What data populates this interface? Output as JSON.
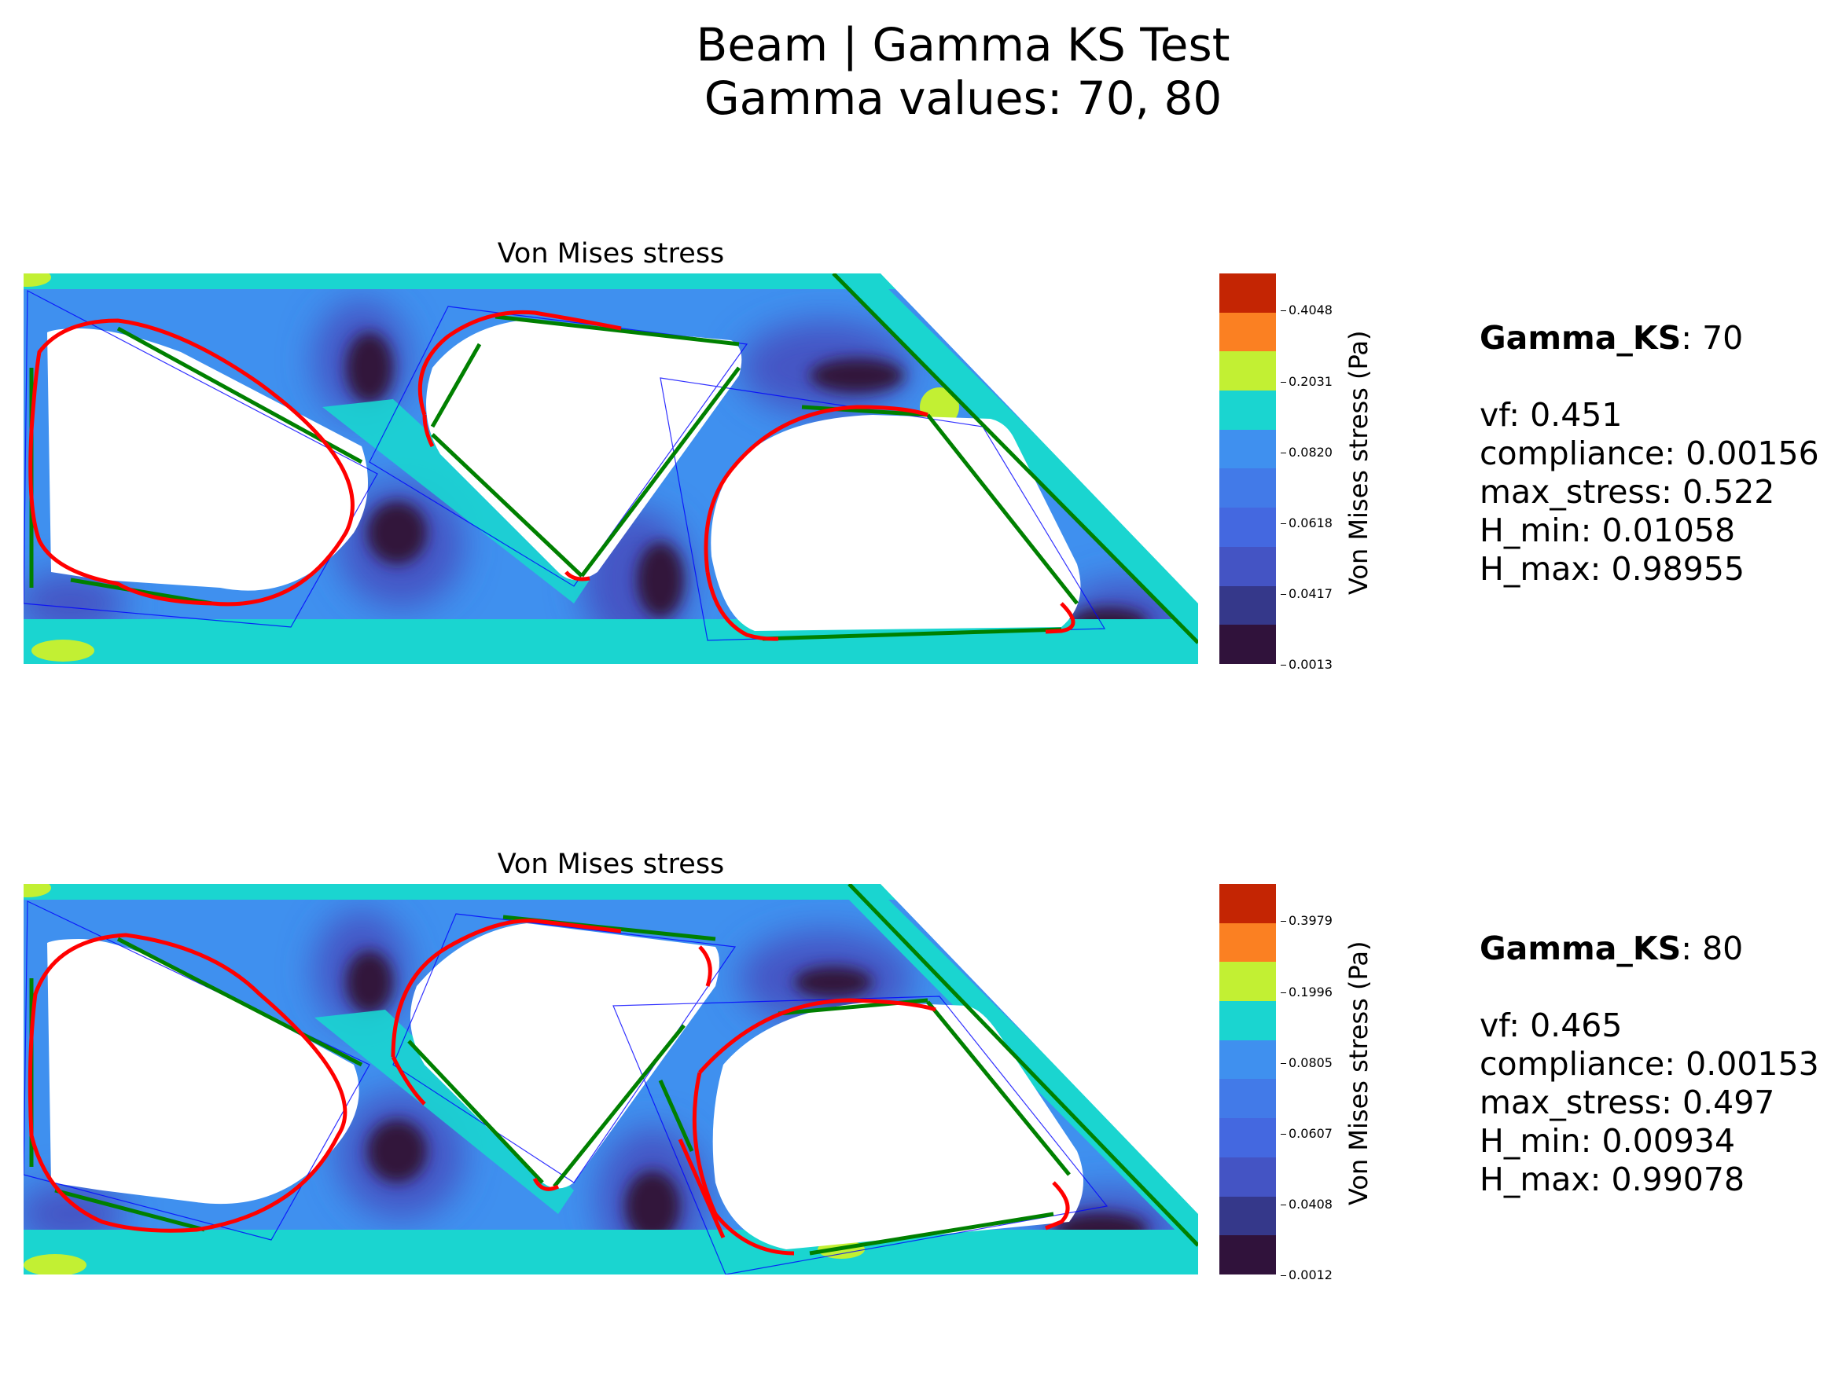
{
  "title_line1": "Beam | Gamma KS Test",
  "title_line2": "Gamma values: 70, 80",
  "colorbar_label": "Von Mises stress (Pa)",
  "colormap": [
    "#30123b",
    "#35388a",
    "#4454c4",
    "#4468e0",
    "#427ae8",
    "#3f90ef",
    "#1ad5d0",
    "#c2f033",
    "#fb8022",
    "#c42503"
  ],
  "chart_data": [
    {
      "type": "contour",
      "title": "Von Mises stress",
      "colorbar_ticks": [
        "0.0013",
        "0.0417",
        "0.0618",
        "0.0820",
        "0.2031",
        "0.4048"
      ],
      "stats": {
        "gamma_ks_label": "Gamma_KS",
        "gamma_ks": "70",
        "vf": "0.451",
        "compliance": "0.00156",
        "max_stress": "0.522",
        "h_min": "0.01058",
        "h_max": "0.98955"
      }
    },
    {
      "type": "contour",
      "title": "Von Mises stress",
      "colorbar_ticks": [
        "0.0012",
        "0.0408",
        "0.0607",
        "0.0805",
        "0.1996",
        "0.3979"
      ],
      "stats": {
        "gamma_ks_label": "Gamma_KS",
        "gamma_ks": "80",
        "vf": "0.465",
        "compliance": "0.00153",
        "max_stress": "0.497",
        "h_min": "0.00934",
        "h_max": "0.99078"
      }
    }
  ]
}
